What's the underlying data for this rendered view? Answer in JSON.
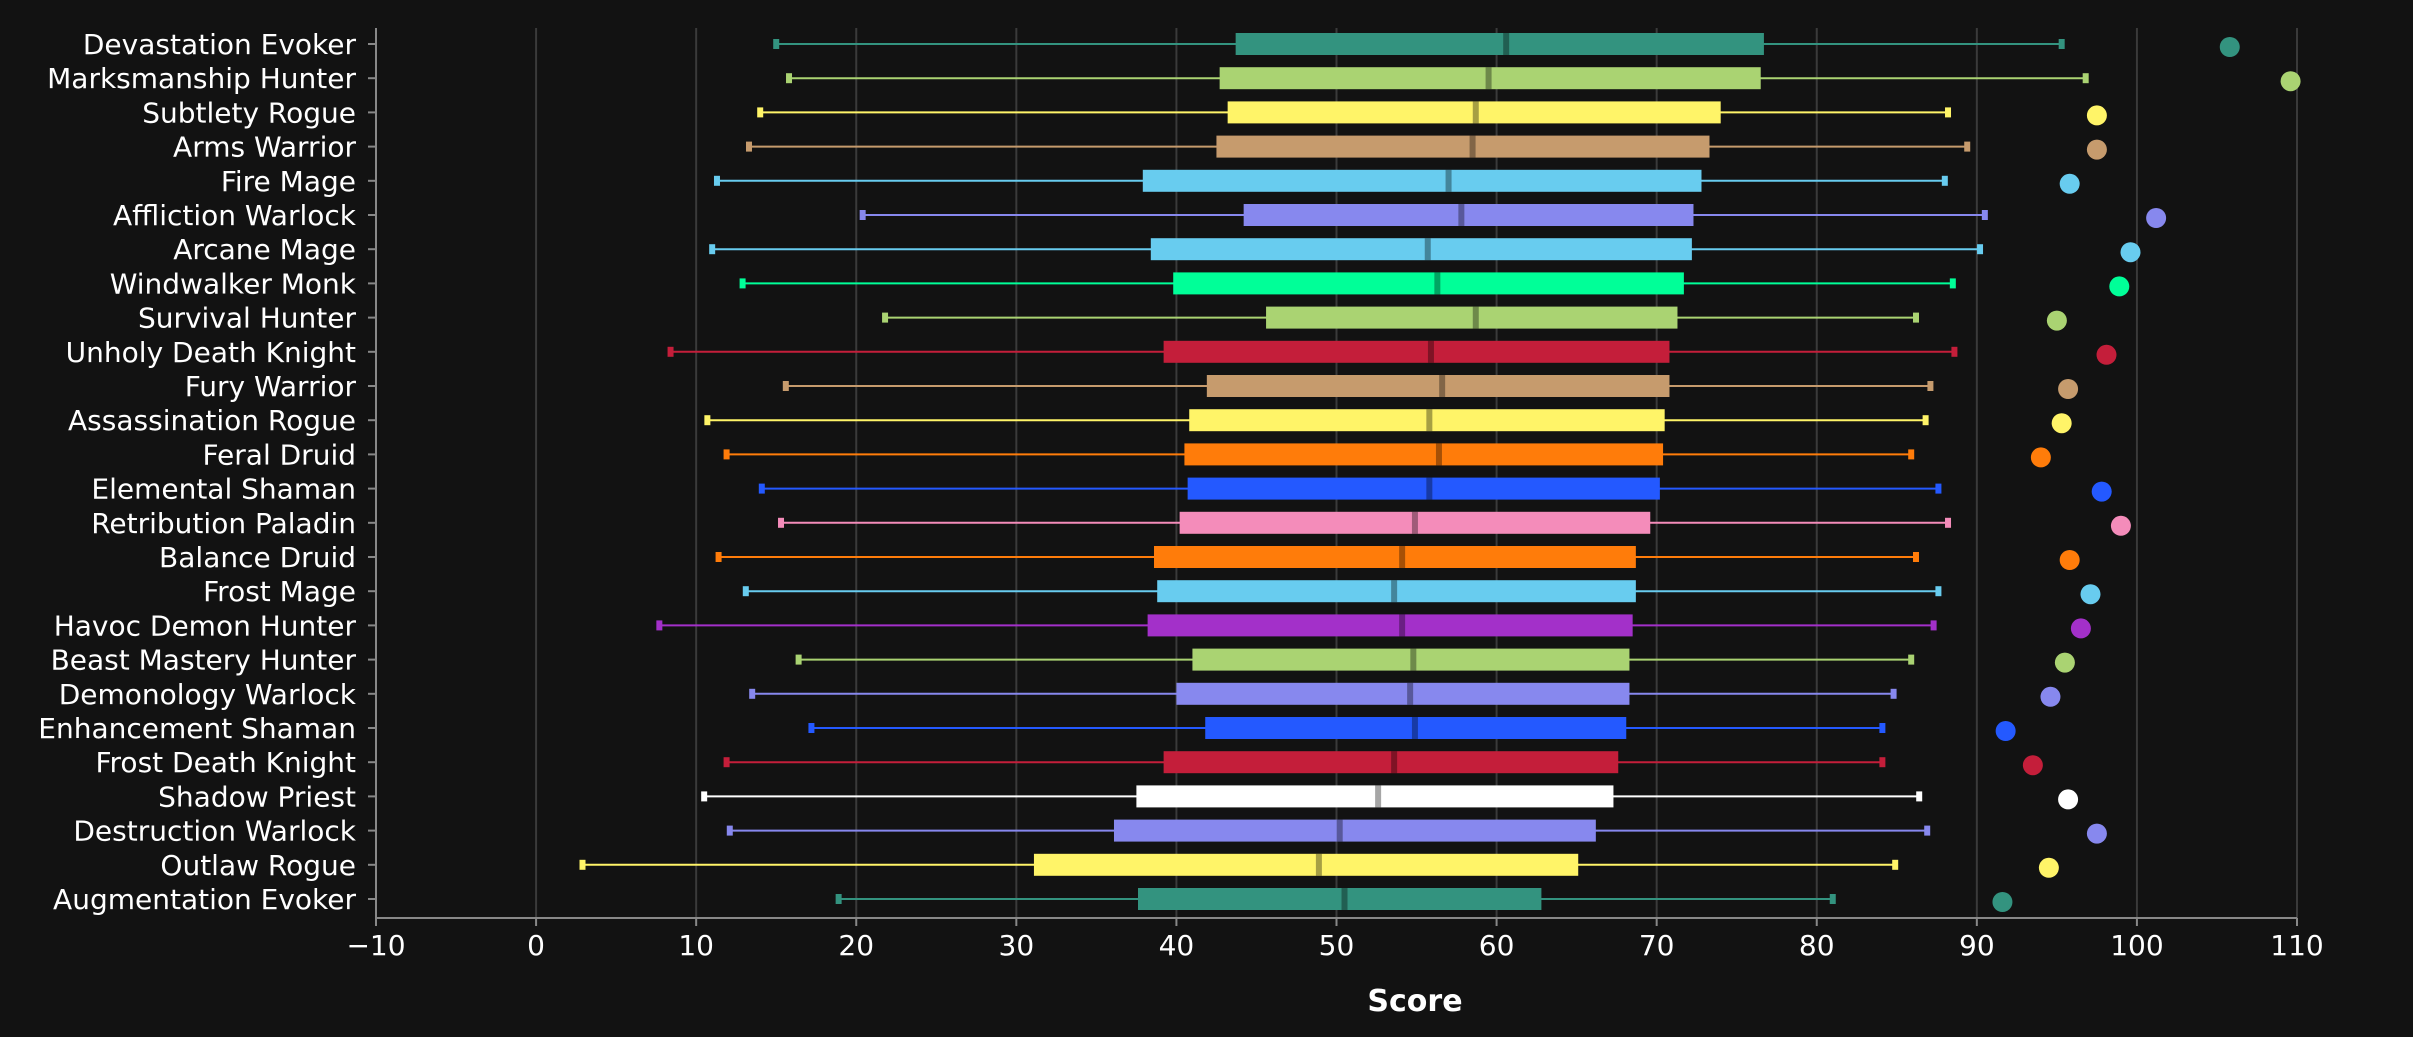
{
  "chart_data": {
    "type": "box",
    "title": "",
    "xlabel": "Score",
    "ylabel": "",
    "xlim": [
      -10,
      110
    ],
    "x_ticks": [
      -10,
      0,
      10,
      20,
      30,
      40,
      50,
      60,
      70,
      80,
      90,
      100,
      110
    ],
    "grid": "vertical",
    "legend": "none",
    "marker_label": "",
    "series": [
      {
        "name": "Devastation Evoker",
        "color": "#33937F",
        "min": 15.0,
        "q1": 43.7,
        "median": 60.6,
        "q3": 76.7,
        "max": 95.3,
        "max_point": 105.8
      },
      {
        "name": "Marksmanship Hunter",
        "color": "#AAD372",
        "min": 15.8,
        "q1": 42.7,
        "median": 59.5,
        "q3": 76.5,
        "max": 96.8,
        "max_point": 109.6
      },
      {
        "name": "Subtlety Rogue",
        "color": "#FFF468",
        "min": 14.0,
        "q1": 43.2,
        "median": 58.7,
        "q3": 74.0,
        "max": 88.2,
        "max_point": 97.5
      },
      {
        "name": "Arms Warrior",
        "color": "#C69B6D",
        "min": 13.3,
        "q1": 42.5,
        "median": 58.5,
        "q3": 73.3,
        "max": 89.4,
        "max_point": 97.5
      },
      {
        "name": "Fire Mage",
        "color": "#68CCEF",
        "min": 11.3,
        "q1": 37.9,
        "median": 57.0,
        "q3": 72.8,
        "max": 88.0,
        "max_point": 95.8
      },
      {
        "name": "Affliction Warlock",
        "color": "#8788EE",
        "min": 20.4,
        "q1": 44.2,
        "median": 57.8,
        "q3": 72.3,
        "max": 90.5,
        "max_point": 101.2
      },
      {
        "name": "Arcane Mage",
        "color": "#68CCEF",
        "min": 11.0,
        "q1": 38.4,
        "median": 55.7,
        "q3": 72.2,
        "max": 90.2,
        "max_point": 99.6
      },
      {
        "name": "Windwalker Monk",
        "color": "#00FF98",
        "min": 12.9,
        "q1": 39.8,
        "median": 56.3,
        "q3": 71.7,
        "max": 88.5,
        "max_point": 98.9
      },
      {
        "name": "Survival Hunter",
        "color": "#AAD372",
        "min": 21.8,
        "q1": 45.6,
        "median": 58.7,
        "q3": 71.3,
        "max": 86.2,
        "max_point": 95.0
      },
      {
        "name": "Unholy Death Knight",
        "color": "#C41E3A",
        "min": 8.4,
        "q1": 39.2,
        "median": 55.9,
        "q3": 70.8,
        "max": 88.6,
        "max_point": 98.1
      },
      {
        "name": "Fury Warrior",
        "color": "#C69B6D",
        "min": 15.6,
        "q1": 41.9,
        "median": 56.6,
        "q3": 70.8,
        "max": 87.1,
        "max_point": 95.7
      },
      {
        "name": "Assassination Rogue",
        "color": "#FFF468",
        "min": 10.7,
        "q1": 40.8,
        "median": 55.8,
        "q3": 70.5,
        "max": 86.8,
        "max_point": 95.3
      },
      {
        "name": "Feral Druid",
        "color": "#FF7C0A",
        "min": 11.9,
        "q1": 40.5,
        "median": 56.4,
        "q3": 70.4,
        "max": 85.9,
        "max_point": 94.0
      },
      {
        "name": "Elemental Shaman",
        "color": "#2459FF",
        "min": 14.1,
        "q1": 40.7,
        "median": 55.8,
        "q3": 70.2,
        "max": 87.6,
        "max_point": 97.8
      },
      {
        "name": "Retribution Paladin",
        "color": "#F48CBA",
        "min": 15.3,
        "q1": 40.2,
        "median": 54.9,
        "q3": 69.6,
        "max": 88.2,
        "max_point": 99.0
      },
      {
        "name": "Balance Druid",
        "color": "#FF7C0A",
        "min": 11.4,
        "q1": 38.6,
        "median": 54.1,
        "q3": 68.7,
        "max": 86.2,
        "max_point": 95.8
      },
      {
        "name": "Frost Mage",
        "color": "#68CCEF",
        "min": 13.1,
        "q1": 38.8,
        "median": 53.6,
        "q3": 68.7,
        "max": 87.6,
        "max_point": 97.1
      },
      {
        "name": "Havoc Demon Hunter",
        "color": "#A330C9",
        "min": 7.7,
        "q1": 38.2,
        "median": 54.1,
        "q3": 68.5,
        "max": 87.3,
        "max_point": 96.5
      },
      {
        "name": "Beast Mastery Hunter",
        "color": "#AAD372",
        "min": 16.4,
        "q1": 41.0,
        "median": 54.8,
        "q3": 68.3,
        "max": 85.9,
        "max_point": 95.5
      },
      {
        "name": "Demonology Warlock",
        "color": "#8788EE",
        "min": 13.5,
        "q1": 40.0,
        "median": 54.6,
        "q3": 68.3,
        "max": 84.8,
        "max_point": 94.6
      },
      {
        "name": "Enhancement Shaman",
        "color": "#2459FF",
        "min": 17.2,
        "q1": 41.8,
        "median": 54.9,
        "q3": 68.1,
        "max": 84.1,
        "max_point": 91.8
      },
      {
        "name": "Frost Death Knight",
        "color": "#C41E3A",
        "min": 11.9,
        "q1": 39.2,
        "median": 53.6,
        "q3": 67.6,
        "max": 84.1,
        "max_point": 93.5
      },
      {
        "name": "Shadow Priest",
        "color": "#FFFFFF",
        "min": 10.5,
        "q1": 37.5,
        "median": 52.6,
        "q3": 67.3,
        "max": 86.4,
        "max_point": 95.7
      },
      {
        "name": "Destruction Warlock",
        "color": "#8788EE",
        "min": 12.1,
        "q1": 36.1,
        "median": 50.2,
        "q3": 66.2,
        "max": 86.9,
        "max_point": 97.5
      },
      {
        "name": "Outlaw Rogue",
        "color": "#FFF468",
        "min": 2.9,
        "q1": 31.1,
        "median": 48.9,
        "q3": 65.1,
        "max": 84.9,
        "max_point": 94.5
      },
      {
        "name": "Augmentation Evoker",
        "color": "#33937F",
        "min": 18.9,
        "q1": 37.6,
        "median": 50.5,
        "q3": 62.8,
        "max": 81.0,
        "max_point": 91.6
      }
    ]
  }
}
